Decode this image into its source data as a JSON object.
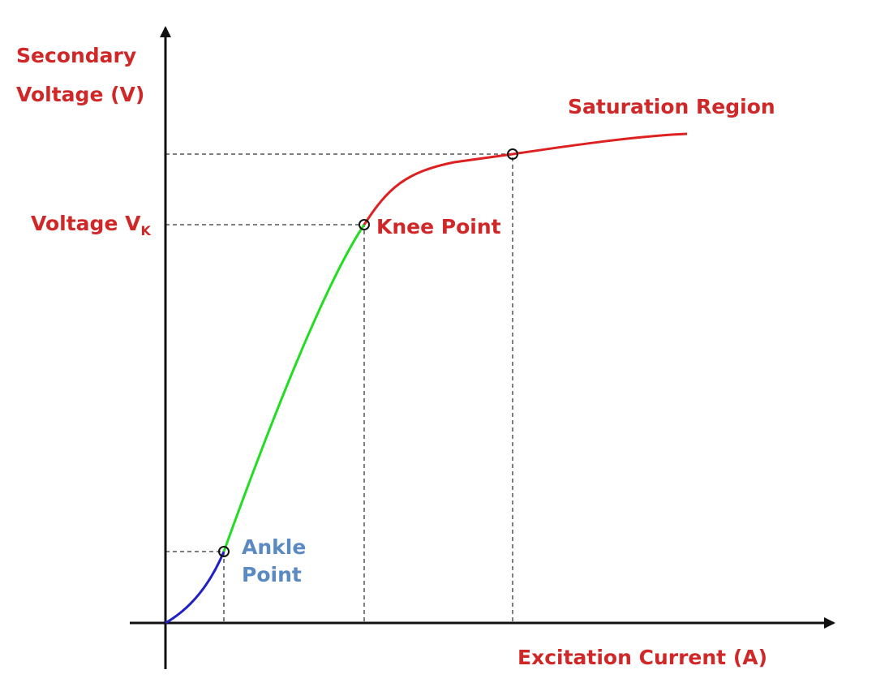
{
  "y_axis_label": [
    "Secondary",
    "Voltage (V)"
  ],
  "voltage_label": {
    "text": "Voltage V",
    "subscript": "K"
  },
  "annotations": {
    "knee": "Knee Point",
    "saturation": "Saturation Region",
    "ankle": [
      "Ankle",
      "Point"
    ]
  },
  "x_axis_label": "Excitation Current (A)"
}
